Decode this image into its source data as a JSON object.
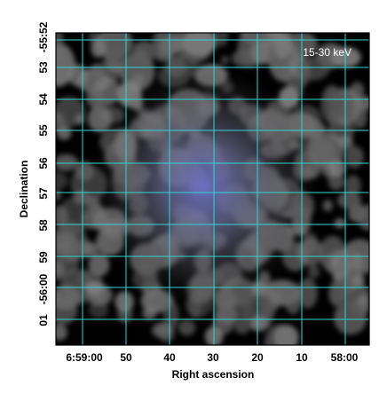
{
  "image": {
    "band_label": "15-30 keV",
    "colors": {
      "background": "#000000",
      "grid": "#2fd6d6",
      "emission": "#9a9a9a",
      "center_glow": "#5a5fb0",
      "band_label": "#ffffff",
      "tick_labels": "#000000"
    }
  },
  "axes": {
    "xlabel": "Right ascension",
    "ylabel": "Declination",
    "x_ticks": [
      "6:59:00",
      "50",
      "40",
      "30",
      "20",
      "10",
      "58:00"
    ],
    "y_ticks": [
      "-55:52",
      "53",
      "54",
      "55",
      "56",
      "57",
      "58",
      "59",
      "-56:00",
      "01"
    ]
  }
}
